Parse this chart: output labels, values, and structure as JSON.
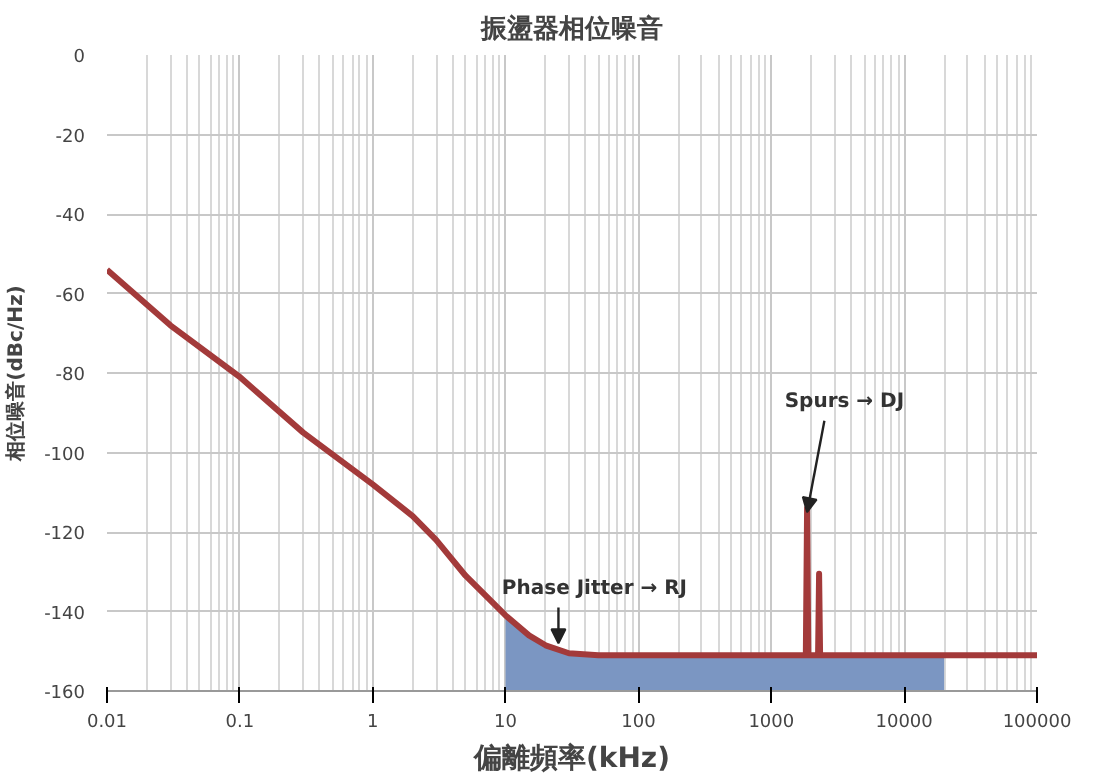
{
  "chart_data": {
    "type": "line",
    "title": "振盪器相位噪音",
    "xlabel": "偏離頻率(kHz)",
    "ylabel": "相位噪音(dBc/Hz)",
    "log": "x",
    "grid": true,
    "xlim": [
      0.01,
      100000
    ],
    "xticks": [
      0.01,
      0.1,
      1,
      10,
      100,
      1000,
      10000,
      100000
    ],
    "ylim": [
      -160,
      0
    ],
    "yticks": [
      -160,
      -140,
      -120,
      -100,
      -80,
      -60,
      -40,
      -20,
      0
    ],
    "series": [
      {
        "type": "area",
        "color": "#7b96c2",
        "x": [
          10,
          10,
          15,
          20,
          30,
          50,
          20000,
          20000
        ],
        "values": [
          -160,
          -141,
          -146,
          -148.5,
          -150.5,
          -151,
          -151,
          -160
        ]
      },
      {
        "color": "#a33a3a",
        "x": [
          0.01,
          0.03,
          0.1,
          0.3,
          1,
          2,
          3,
          5,
          10,
          15,
          20,
          30,
          50,
          100,
          1000,
          1820,
          1860,
          1900,
          2250,
          2290,
          2330,
          10000,
          100000
        ],
        "values": [
          -54,
          -68,
          -81,
          -95,
          -108,
          -116,
          -122,
          -131,
          -141,
          -146,
          -148.5,
          -150.5,
          -151,
          -151,
          -151,
          -151,
          -114,
          -151,
          -151,
          -130.5,
          -151,
          -151,
          -151
        ]
      }
    ],
    "annotations": [
      {
        "text": "Phase Jitter → RJ",
        "x": 25,
        "y": -149
      },
      {
        "text": "Spurs → DJ",
        "x": 1860,
        "y": -116
      }
    ]
  }
}
